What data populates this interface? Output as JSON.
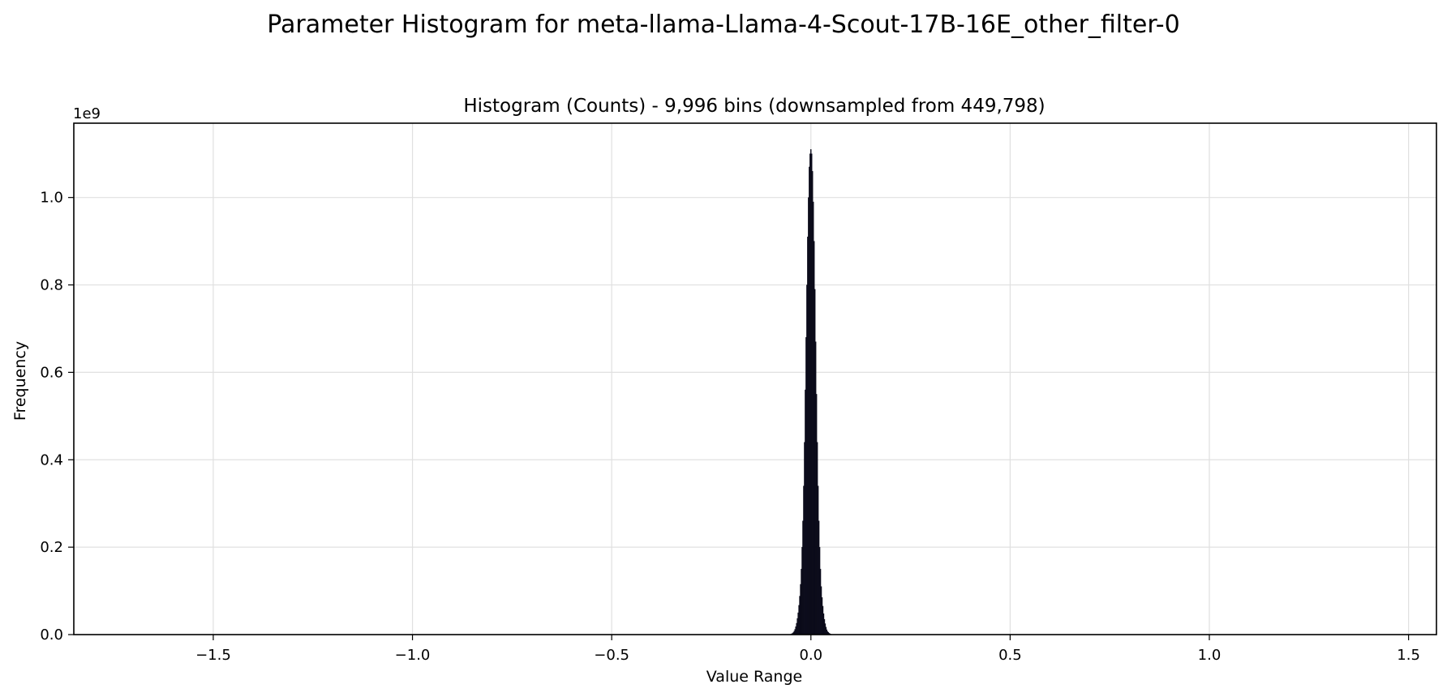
{
  "figure": {
    "suptitle": "Parameter Histogram for meta-llama-Llama-4-Scout-17B-16E_other_filter-0"
  },
  "colors": {
    "bars": "#0b0b1a",
    "grid": "#e0e0e0",
    "axes": "#000000"
  },
  "chart_data": {
    "type": "bar",
    "title": "Histogram (Counts) - 9,996 bins (downsampled from 449,798)",
    "xlabel": "Value Range",
    "ylabel": "Frequency",
    "y_offset_label": "1e9",
    "y_scale_multiplier": 1000000000,
    "xlim": [
      -1.85,
      1.57
    ],
    "ylim": [
      0,
      1.17
    ],
    "x_ticks": [
      -1.5,
      -1.0,
      -0.5,
      0.0,
      0.5,
      1.0,
      1.5
    ],
    "x_tick_labels": [
      "−1.5",
      "−1.0",
      "−0.5",
      "0.0",
      "0.5",
      "1.0",
      "1.5"
    ],
    "y_ticks": [
      0.0,
      0.2,
      0.4,
      0.6,
      0.8,
      1.0
    ],
    "y_tick_labels": [
      "0.0",
      "0.2",
      "0.4",
      "0.6",
      "0.8",
      "1.0"
    ],
    "grid": true,
    "legend": "none",
    "bin_width": 0.002,
    "x": [
      -0.05,
      -0.048,
      -0.046,
      -0.044,
      -0.042,
      -0.04,
      -0.038,
      -0.036,
      -0.034,
      -0.032,
      -0.03,
      -0.028,
      -0.026,
      -0.024,
      -0.022,
      -0.02,
      -0.018,
      -0.016,
      -0.014,
      -0.012,
      -0.01,
      -0.008,
      -0.006,
      -0.004,
      -0.002,
      0.0,
      0.002,
      0.004,
      0.006,
      0.008,
      0.01,
      0.012,
      0.014,
      0.016,
      0.018,
      0.02,
      0.022,
      0.024,
      0.026,
      0.028,
      0.03,
      0.032,
      0.034,
      0.036,
      0.038,
      0.04,
      0.042,
      0.044,
      0.046,
      0.048,
      0.05
    ],
    "values": [
      0.001,
      0.002,
      0.003,
      0.005,
      0.008,
      0.012,
      0.018,
      0.026,
      0.037,
      0.05,
      0.067,
      0.088,
      0.115,
      0.15,
      0.2,
      0.26,
      0.34,
      0.44,
      0.56,
      0.68,
      0.8,
      0.91,
      1.0,
      1.07,
      1.1,
      1.11,
      1.1,
      1.06,
      0.99,
      0.9,
      0.79,
      0.67,
      0.55,
      0.44,
      0.34,
      0.26,
      0.2,
      0.15,
      0.11,
      0.085,
      0.065,
      0.048,
      0.035,
      0.025,
      0.017,
      0.011,
      0.007,
      0.005,
      0.003,
      0.002,
      0.001
    ]
  }
}
